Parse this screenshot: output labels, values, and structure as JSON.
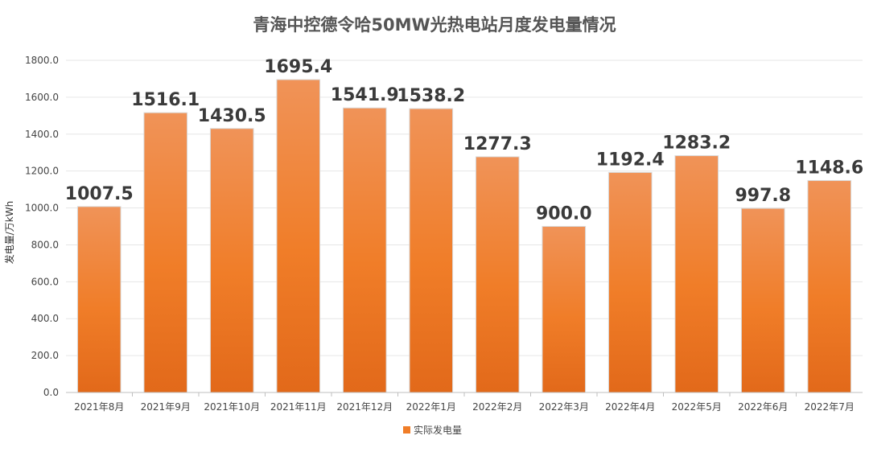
{
  "chart_data": {
    "type": "bar",
    "title": "青海中控德令哈50MW光热电站月度发电量情况",
    "ylabel": "发电量/万kWh",
    "xlabel": "",
    "ylim": [
      0,
      1800
    ],
    "ytick_step": 200,
    "ytick_labels": [
      "0.0",
      "200.0",
      "400.0",
      "600.0",
      "800.0",
      "1000.0",
      "1200.0",
      "1400.0",
      "1600.0",
      "1800.0"
    ],
    "categories": [
      "2021年8月",
      "2021年9月",
      "2021年10月",
      "2021年11月",
      "2021年12月",
      "2022年1月",
      "2022年2月",
      "2022年3月",
      "2022年4月",
      "2022年5月",
      "2022年6月",
      "2022年7月"
    ],
    "series": [
      {
        "name": "实际发电量",
        "values": [
          1007.5,
          1516.1,
          1430.5,
          1695.4,
          1541.9,
          1538.2,
          1277.3,
          900.0,
          1192.4,
          1283.2,
          997.8,
          1148.6
        ],
        "labels": [
          "1007.5",
          "1516.1",
          "1430.5",
          "1695.4",
          "1541.9",
          "1538.2",
          "1277.3",
          "900.0",
          "1192.4",
          "1283.2",
          "997.8",
          "1148.6"
        ]
      }
    ],
    "grid": true,
    "legend_position": "bottom",
    "colors": {
      "bar_top": "#f09358",
      "bar_mid": "#f07d28",
      "bar_bottom": "#e2691a",
      "legend": "#f07d28"
    }
  }
}
